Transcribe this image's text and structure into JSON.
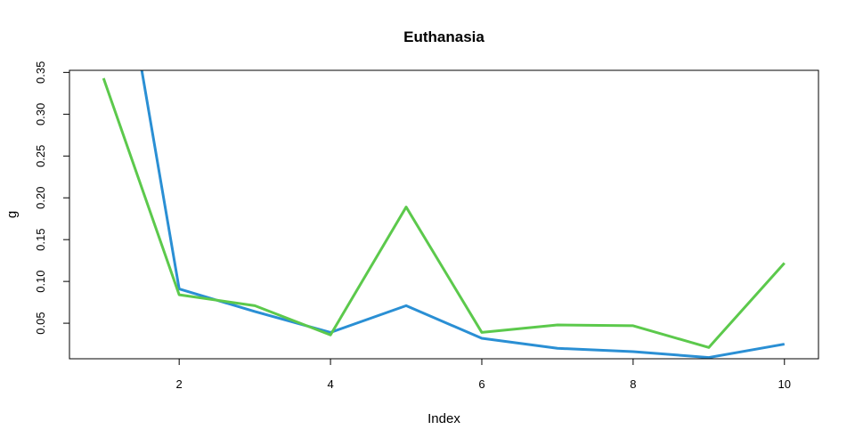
{
  "chart_data": {
    "type": "line",
    "title": "Euthanasia",
    "xlabel": "Index",
    "ylabel": "g",
    "x": [
      1,
      2,
      3,
      4,
      5,
      6,
      7,
      8,
      9,
      10
    ],
    "xlim": [
      0.55,
      10.45
    ],
    "ylim": [
      0.0075,
      0.3525
    ],
    "x_ticks": [
      "2",
      "4",
      "6",
      "8",
      "10"
    ],
    "y_ticks": [
      "0.05",
      "0.10",
      "0.15",
      "0.20",
      "0.25",
      "0.30",
      "0.35"
    ],
    "grid": false,
    "series": [
      {
        "color": "#2a8fd4",
        "values": [
          0.62,
          0.091,
          0.064,
          0.039,
          0.071,
          0.032,
          0.02,
          0.016,
          0.009,
          0.025
        ]
      },
      {
        "color": "#5cc94c",
        "values": [
          0.343,
          0.084,
          0.071,
          0.036,
          0.189,
          0.039,
          0.048,
          0.047,
          0.021,
          0.122
        ]
      }
    ]
  }
}
